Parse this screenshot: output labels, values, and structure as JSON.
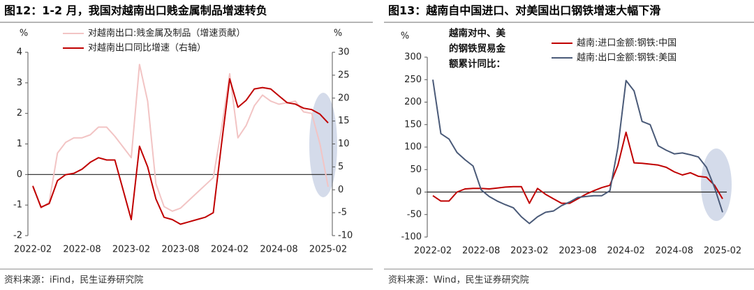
{
  "chart_data": [
    {
      "type": "line",
      "title": "图12：1-2 月，我国对越南出口贱金属制品增速转负",
      "source": "资料来源：iFind，民生证券研究院",
      "y_label": "%",
      "y2_label": "%",
      "categories": [
        "2022-02",
        null,
        null,
        null,
        null,
        null,
        "2022-08",
        null,
        null,
        null,
        null,
        null,
        "2023-02",
        null,
        null,
        null,
        null,
        null,
        "2023-08",
        null,
        null,
        null,
        null,
        null,
        "2024-02",
        null,
        null,
        null,
        null,
        null,
        "2024-08",
        null,
        null,
        null,
        null,
        null,
        "2025-02"
      ],
      "ylim": [
        -2,
        4
      ],
      "yticks": [
        -2,
        -1,
        0,
        1,
        2,
        3,
        4
      ],
      "y2lim": [
        -10,
        30
      ],
      "y2ticks": [
        -10,
        -5,
        0,
        5,
        10,
        15,
        20,
        25,
        30
      ],
      "legend": "upper center",
      "series": [
        {
          "name": "对越南出口:贱金属及制品（增速贡献）",
          "color": "#f2c4c4",
          "values": [
            -0.35,
            -1.1,
            -0.9,
            0.7,
            1.05,
            1.2,
            1.2,
            1.3,
            1.55,
            1.55,
            1.25,
            0.9,
            0.55,
            3.6,
            2.4,
            -0.3,
            -1.05,
            -1.2,
            -1.1,
            -0.85,
            -0.6,
            -0.35,
            -0.1,
            1.5,
            3.3,
            1.2,
            1.6,
            2.25,
            2.6,
            2.4,
            2.3,
            2.35,
            2.4,
            2.05,
            2.0,
            1.0,
            -0.4
          ]
        },
        {
          "name": "对越南出口同比增速（右轴）",
          "color": "#c00000",
          "axis": "y2",
          "values": [
            0.8,
            -3.8,
            -3,
            2,
            3.3,
            3.6,
            4.5,
            6,
            7,
            6.5,
            6.5,
            0,
            -6.5,
            9.5,
            5,
            -2,
            -6,
            -6.5,
            -7.5,
            -7,
            -6.5,
            -6,
            -5,
            10,
            24.2,
            18,
            19.5,
            22,
            22.3,
            22,
            20.5,
            19,
            18.7,
            17.8,
            17.5,
            16.5,
            14.6
          ]
        }
      ]
    },
    {
      "type": "line",
      "title": "图13：越南自中国进口、对美国出口钢铁增速大幅下滑",
      "source": "资料来源：Wind，民生证券研究院",
      "y_label": "%",
      "annotations": [
        "越南对中、美",
        "的钢铁贸易金",
        "额累计同比："
      ],
      "categories": [
        "2022-02",
        null,
        null,
        null,
        null,
        null,
        "2022-08",
        null,
        null,
        null,
        null,
        null,
        "2023-02",
        null,
        null,
        null,
        null,
        null,
        "2023-08",
        null,
        null,
        null,
        null,
        null,
        "2024-02",
        null,
        null,
        null,
        null,
        null,
        "2024-08",
        null,
        null,
        null,
        null,
        null,
        "2025-02"
      ],
      "ylim": [
        -100,
        300
      ],
      "yticks": [
        -100,
        -50,
        0,
        50,
        100,
        150,
        200,
        250,
        300
      ],
      "legend": "upper right",
      "series": [
        {
          "name": "越南:进口金额:钢铁:中国",
          "color": "#c00000",
          "values": [
            -8,
            -20,
            -20,
            0,
            7,
            8,
            8,
            7,
            9,
            11,
            12,
            12,
            -25,
            8,
            -5,
            -15,
            -25,
            -25,
            -15,
            -5,
            3,
            10,
            15,
            60,
            133,
            65,
            64,
            62,
            60,
            55,
            45,
            38,
            43,
            35,
            33,
            15,
            -15
          ]
        },
        {
          "name": "越南:出口金额:钢铁:美国",
          "color": "#4a5a78",
          "values": [
            250,
            130,
            118,
            88,
            72,
            58,
            5,
            -10,
            -20,
            -28,
            -35,
            -55,
            -70,
            -55,
            -45,
            -42,
            -30,
            -22,
            -12,
            -10,
            -8,
            -8,
            3,
            100,
            248,
            225,
            157,
            150,
            103,
            93,
            85,
            87,
            83,
            78,
            55,
            10,
            -45
          ]
        }
      ]
    }
  ]
}
